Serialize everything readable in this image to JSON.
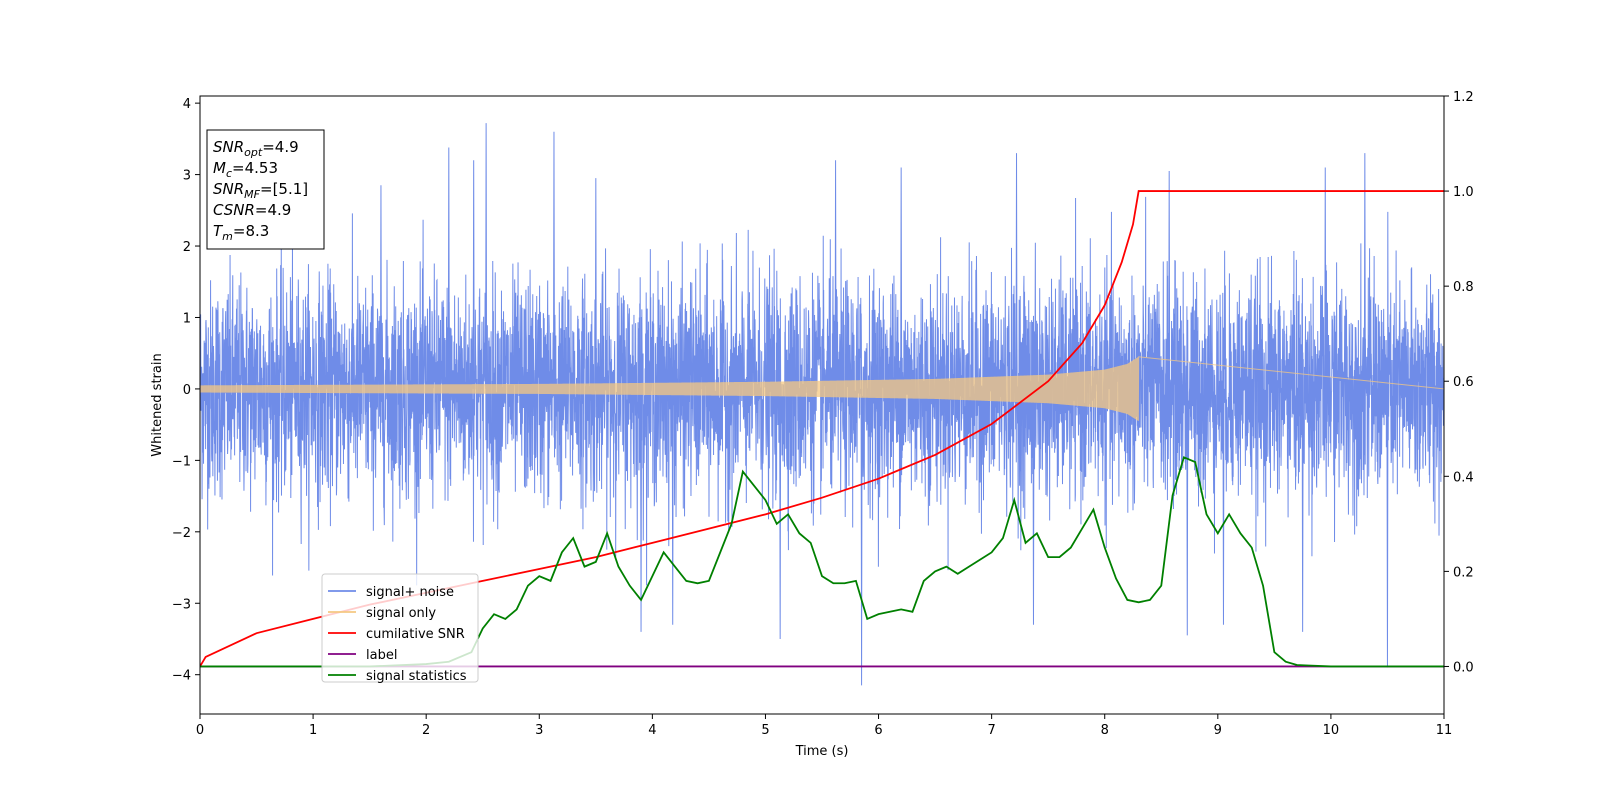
{
  "chart_data": {
    "type": "line",
    "xlabel": "Time (s)",
    "ylabel": "Whitened strain",
    "xlim": [
      0,
      11
    ],
    "ylim_left": [
      -4.55,
      4.1
    ],
    "ylim_right": [
      -0.1,
      1.2
    ],
    "xticks": [
      "0",
      "1",
      "2",
      "3",
      "4",
      "5",
      "6",
      "7",
      "8",
      "9",
      "10",
      "11"
    ],
    "yticks_left": [
      "−4",
      "−3",
      "−2",
      "−1",
      "0",
      "1",
      "2",
      "3",
      "4"
    ],
    "yticks_right": [
      "0.0",
      "0.2",
      "0.4",
      "0.6",
      "0.8",
      "1.0",
      "1.2"
    ],
    "legend": {
      "placement": "lower-left",
      "entries": [
        {
          "label": "signal+ noise",
          "color": "#6f8ce8"
        },
        {
          "label": "signal only",
          "color": "#f5c882"
        },
        {
          "label": "cumilative SNR",
          "color": "#ff0000"
        },
        {
          "label": "label",
          "color": "#800080"
        },
        {
          "label": "signal statistics",
          "color": "#008000"
        }
      ]
    },
    "annotation": {
      "lines": [
        {
          "sym": "SNR",
          "sub": "opt",
          "val": "=4.9"
        },
        {
          "sym": "M",
          "sub": "c",
          "val": "=4.53"
        },
        {
          "sym": "SNR",
          "sub": "MF",
          "val": "=[5.1]"
        },
        {
          "sym": "CSNR",
          "sub": "",
          "val": "=4.9"
        },
        {
          "sym": "T",
          "sub": "m",
          "val": "=8.3"
        }
      ]
    },
    "series": [
      {
        "name": "signal+ noise",
        "axis": "left",
        "color": "#6f8ce8",
        "t_end": 11,
        "peaks": [
          {
            "t": 2.53,
            "v": 3.72
          },
          {
            "t": 2.2,
            "v": 3.38
          },
          {
            "t": 3.13,
            "v": 3.6
          },
          {
            "t": 2.42,
            "v": 3.2
          },
          {
            "t": 1.6,
            "v": 2.85
          },
          {
            "t": 3.5,
            "v": 2.95
          },
          {
            "t": 5.62,
            "v": 3.2
          },
          {
            "t": 6.2,
            "v": 3.1
          },
          {
            "t": 7.22,
            "v": 3.3
          },
          {
            "t": 8.57,
            "v": 3.05
          },
          {
            "t": 10.3,
            "v": 3.3
          },
          {
            "t": 9.95,
            "v": 3.1
          },
          {
            "t": 5.85,
            "v": -4.15
          },
          {
            "t": 5.13,
            "v": -3.5
          },
          {
            "t": 8.73,
            "v": -3.45
          },
          {
            "t": 10.5,
            "v": -3.9
          },
          {
            "t": 9.75,
            "v": -3.4
          },
          {
            "t": 3.9,
            "v": -3.4
          },
          {
            "t": 7.37,
            "v": -3.3
          },
          {
            "t": 4.18,
            "v": -3.3
          },
          {
            "t": 9.05,
            "v": -3.3
          }
        ]
      },
      {
        "name": "signal only",
        "axis": "left",
        "color": "#f5c882",
        "t_merge": 8.3,
        "amplitude_points": [
          [
            0,
            0.05
          ],
          [
            3,
            0.07
          ],
          [
            5,
            0.1
          ],
          [
            6.5,
            0.14
          ],
          [
            7.5,
            0.2
          ],
          [
            8.0,
            0.27
          ],
          [
            8.2,
            0.35
          ],
          [
            8.3,
            0.45
          ]
        ]
      },
      {
        "name": "cumilative SNR",
        "axis": "right",
        "color": "#ff0000",
        "x": [
          0,
          0.05,
          0.5,
          1,
          1.5,
          2,
          2.5,
          3,
          3.5,
          4,
          4.5,
          5,
          5.5,
          6,
          6.5,
          7,
          7.5,
          7.8,
          8.0,
          8.15,
          8.25,
          8.3,
          9,
          10,
          11
        ],
        "y": [
          0.0,
          0.02,
          0.07,
          0.1,
          0.13,
          0.155,
          0.18,
          0.205,
          0.23,
          0.26,
          0.29,
          0.32,
          0.355,
          0.395,
          0.445,
          0.51,
          0.6,
          0.68,
          0.76,
          0.85,
          0.93,
          1.0,
          1.0,
          1.0,
          1.0
        ]
      },
      {
        "name": "label",
        "axis": "right",
        "color": "#800080",
        "x": [
          0,
          11
        ],
        "y": [
          0.0,
          0.0
        ]
      },
      {
        "name": "signal statistics",
        "axis": "right",
        "color": "#008000",
        "x": [
          0,
          0.5,
          1,
          1.5,
          2,
          2.2,
          2.4,
          2.5,
          2.6,
          2.7,
          2.8,
          2.9,
          3.0,
          3.1,
          3.2,
          3.3,
          3.4,
          3.5,
          3.6,
          3.7,
          3.8,
          3.9,
          4.0,
          4.1,
          4.2,
          4.3,
          4.4,
          4.5,
          4.6,
          4.7,
          4.8,
          4.9,
          5.0,
          5.1,
          5.2,
          5.3,
          5.4,
          5.5,
          5.6,
          5.7,
          5.8,
          5.9,
          6.0,
          6.1,
          6.2,
          6.3,
          6.4,
          6.5,
          6.6,
          6.7,
          6.8,
          6.9,
          7.0,
          7.1,
          7.2,
          7.3,
          7.4,
          7.5,
          7.6,
          7.7,
          7.8,
          7.9,
          8.0,
          8.1,
          8.2,
          8.3,
          8.4,
          8.5,
          8.6,
          8.7,
          8.8,
          8.9,
          9.0,
          9.1,
          9.2,
          9.3,
          9.4,
          9.5,
          9.6,
          9.7,
          9.8,
          10,
          11
        ],
        "y": [
          0.0,
          0.0,
          0.0,
          0.0,
          0.005,
          0.01,
          0.03,
          0.08,
          0.11,
          0.1,
          0.12,
          0.17,
          0.19,
          0.18,
          0.24,
          0.27,
          0.21,
          0.22,
          0.28,
          0.21,
          0.17,
          0.14,
          0.19,
          0.24,
          0.21,
          0.18,
          0.175,
          0.18,
          0.24,
          0.3,
          0.41,
          0.38,
          0.35,
          0.3,
          0.32,
          0.28,
          0.26,
          0.19,
          0.175,
          0.175,
          0.18,
          0.1,
          0.11,
          0.115,
          0.12,
          0.115,
          0.18,
          0.2,
          0.21,
          0.195,
          0.21,
          0.225,
          0.24,
          0.27,
          0.35,
          0.26,
          0.28,
          0.23,
          0.23,
          0.25,
          0.29,
          0.33,
          0.25,
          0.185,
          0.14,
          0.135,
          0.14,
          0.17,
          0.36,
          0.44,
          0.43,
          0.32,
          0.28,
          0.32,
          0.28,
          0.25,
          0.17,
          0.03,
          0.01,
          0.003,
          0.002,
          0.0,
          0.0
        ]
      }
    ]
  }
}
